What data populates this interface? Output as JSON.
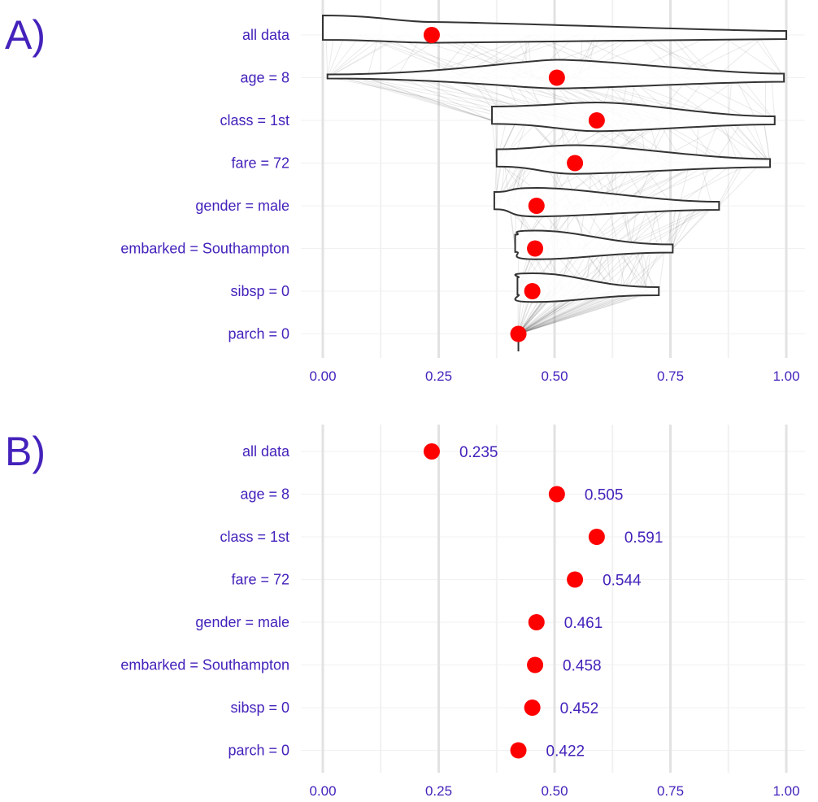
{
  "colors": {
    "text": "#4422bb",
    "point": "#ff0000",
    "violin_stroke": "#333333",
    "grid_major": "#e2e2e2",
    "grid_minor": "#f1f1f1",
    "line": "#555555"
  },
  "chart_data": [
    {
      "panel": "A)",
      "type": "violin",
      "xlim": [
        0,
        1
      ],
      "x_ticks": [
        "0.00",
        "0.25",
        "0.50",
        "0.75",
        "1.00"
      ],
      "categories": [
        "all data",
        "age = 8",
        "class = 1st",
        "fare = 72",
        "gender = male",
        "embarked = Southampton",
        "sibsp = 0",
        "parch = 0"
      ],
      "means": [
        0.235,
        0.505,
        0.591,
        0.544,
        0.461,
        0.458,
        0.452,
        0.422
      ],
      "ranges": [
        [
          0.0,
          1.0
        ],
        [
          0.01,
          0.995
        ],
        [
          0.365,
          0.975
        ],
        [
          0.375,
          0.965
        ],
        [
          0.37,
          0.855
        ],
        [
          0.415,
          0.755
        ],
        [
          0.42,
          0.725
        ],
        [
          0.421,
          0.423
        ]
      ],
      "grid": true
    },
    {
      "panel": "B)",
      "type": "scatter",
      "xlim": [
        0,
        1
      ],
      "x_ticks": [
        "0.00",
        "0.25",
        "0.50",
        "0.75",
        "1.00"
      ],
      "categories": [
        "all data",
        "age = 8",
        "class = 1st",
        "fare = 72",
        "gender = male",
        "embarked = Southampton",
        "sibsp = 0",
        "parch = 0"
      ],
      "values": [
        0.235,
        0.505,
        0.591,
        0.544,
        0.461,
        0.458,
        0.452,
        0.422
      ],
      "value_labels": [
        "0.235",
        "0.505",
        "0.591",
        "0.544",
        "0.461",
        "0.458",
        "0.452",
        "0.422"
      ],
      "grid": true
    }
  ]
}
